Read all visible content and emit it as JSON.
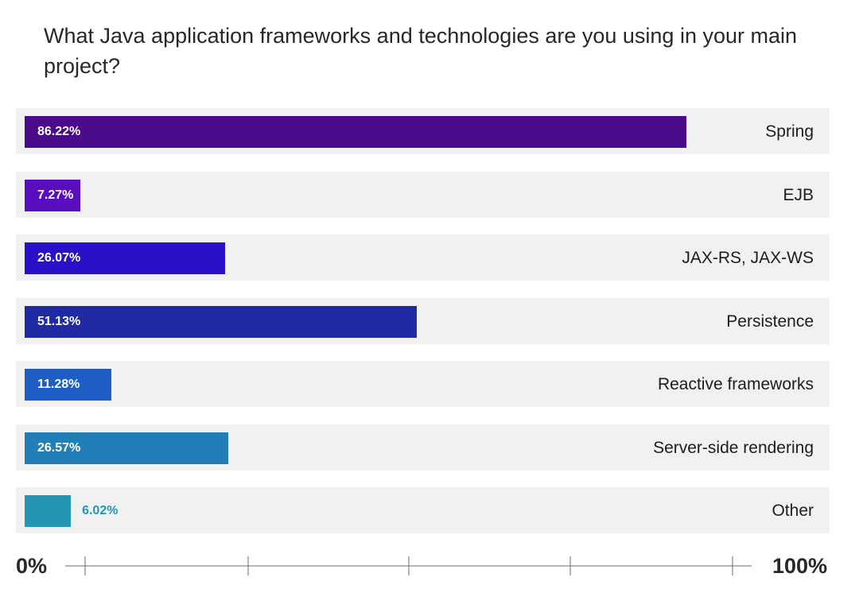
{
  "chart_data": {
    "type": "bar",
    "orientation": "horizontal",
    "title": "What Java application frameworks and technologies are you using in your main project?",
    "categories": [
      "Spring",
      "EJB",
      "JAX-RS, JAX-WS",
      "Persistence",
      "Reactive frameworks",
      "Server-side rendering",
      "Other"
    ],
    "values": [
      86.22,
      7.27,
      26.07,
      51.13,
      11.28,
      26.57,
      6.02
    ],
    "value_labels": [
      "86.22%",
      "7.27%",
      "26.07%",
      "51.13%",
      "11.28%",
      "26.57%",
      "6.02%"
    ],
    "colors": [
      "#4a0a8a",
      "#5a0dbf",
      "#2a10c8",
      "#1f2aa3",
      "#1e5ec4",
      "#1f7fb6",
      "#2396b3"
    ],
    "xlim": [
      0,
      100
    ],
    "x_min_label": "0%",
    "x_max_label": "100%",
    "grid": false,
    "legend": "none"
  }
}
